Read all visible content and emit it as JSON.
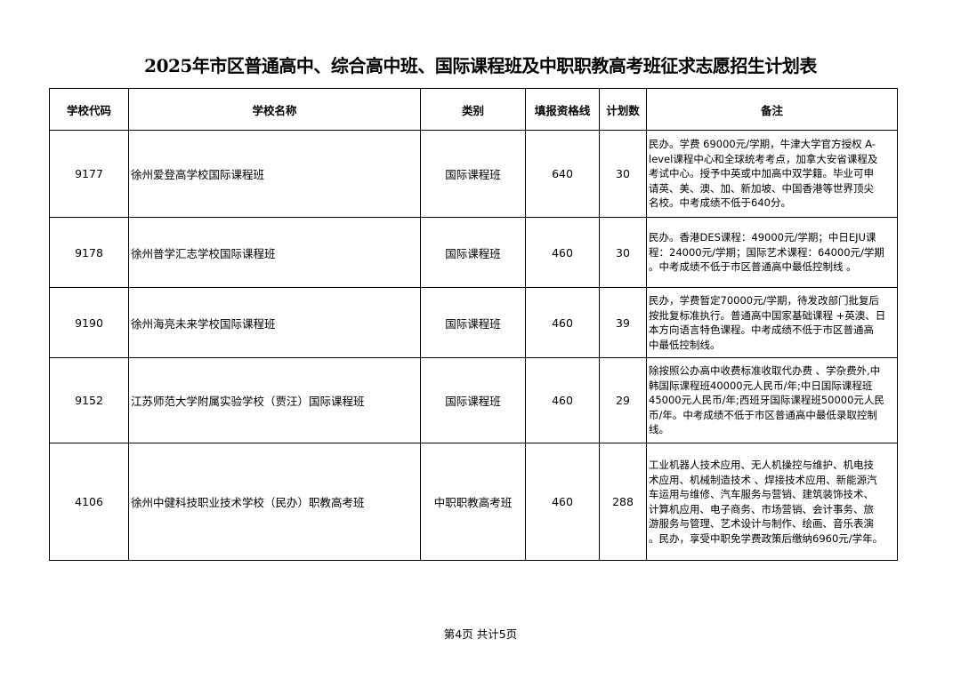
{
  "title": "2025年市区普通高中、综合高中班、国际课程班及中职职教高考班征求志愿招生计划表",
  "headers": [
    "学校代码",
    "学校名称",
    "类别",
    "填报资格线",
    "计划数",
    "备注"
  ],
  "rows": [
    {
      "code": "9177",
      "name": "徐州爱登高学校国际课程班",
      "category": "国际课程班",
      "line": "640",
      "plan": "30",
      "remarks": [
        "民办。学费 69000元/学期，牛津大学官方授权 A-",
        "level课程中心和全球统考考点，加拿大安省课程及",
        "考试中心。授予中英或中加高中双学籍。毕业可申",
        "请英、美、澳、加、新加坡、中国香港等世界顶尖",
        "名校。中考成绩不低于640分。"
      ]
    },
    {
      "code": "9178",
      "name": "徐州普学汇志学校国际课程班",
      "category": "国际课程班",
      "line": "460",
      "plan": "30",
      "remarks": [
        "民办。香港DES课程：49000元/学期；中日EJU课",
        "程：24000元/学期；国际艺术课程：64000元/学期",
        "。中考成绩不低于市区普通高中最低控制线 。"
      ]
    },
    {
      "code": "9190",
      "name": "徐州海亮未来学校国际课程班",
      "category": "国际课程班",
      "line": "460",
      "plan": "39",
      "remarks": [
        "民办，学费暂定70000元/学期，待发改部门批复后",
        "按批复标准执行。普通高中国家基础课程 +英澳、日",
        "本方向语言特色课程。中考成绩不低于市区普通高",
        "中最低控制线。"
      ]
    },
    {
      "code": "9152",
      "name": "江苏师范大学附属实验学校（贾汪）国际课程班",
      "category": "国际课程班",
      "line": "460",
      "plan": "29",
      "remarks": [
        "除按照公办高中收费标准收取代办费 、学杂费外,中",
        "韩国际课程班40000元人民币/年;中日国际课程班",
        "45000元人民币/年;西班牙国际课程班50000元人民",
        "币/年。中考成绩不低于市区普通高中最低录取控制",
        "线。"
      ]
    },
    {
      "code": "4106",
      "name": "徐州中健科技职业技术学校（民办）职教高考班",
      "category": "中职职教高考班",
      "line": "460",
      "plan": "288",
      "remarks": [
        "工业机器人技术应用、无人机操控与维护、机电技",
        "术应用、机械制造技术 、焊接技术应用、新能源汽",
        "车运用与维修、汽车服务与营销、建筑装饰技术、",
        "计算机应用、电子商务、市场营销、会计事务、旅",
        "游服务与管理、艺术设计与制作、绘画、音乐表演",
        "。民办，享受中职免学费政策后缴纳6960元/学年。"
      ]
    }
  ],
  "footer": "第4页  共计5页"
}
